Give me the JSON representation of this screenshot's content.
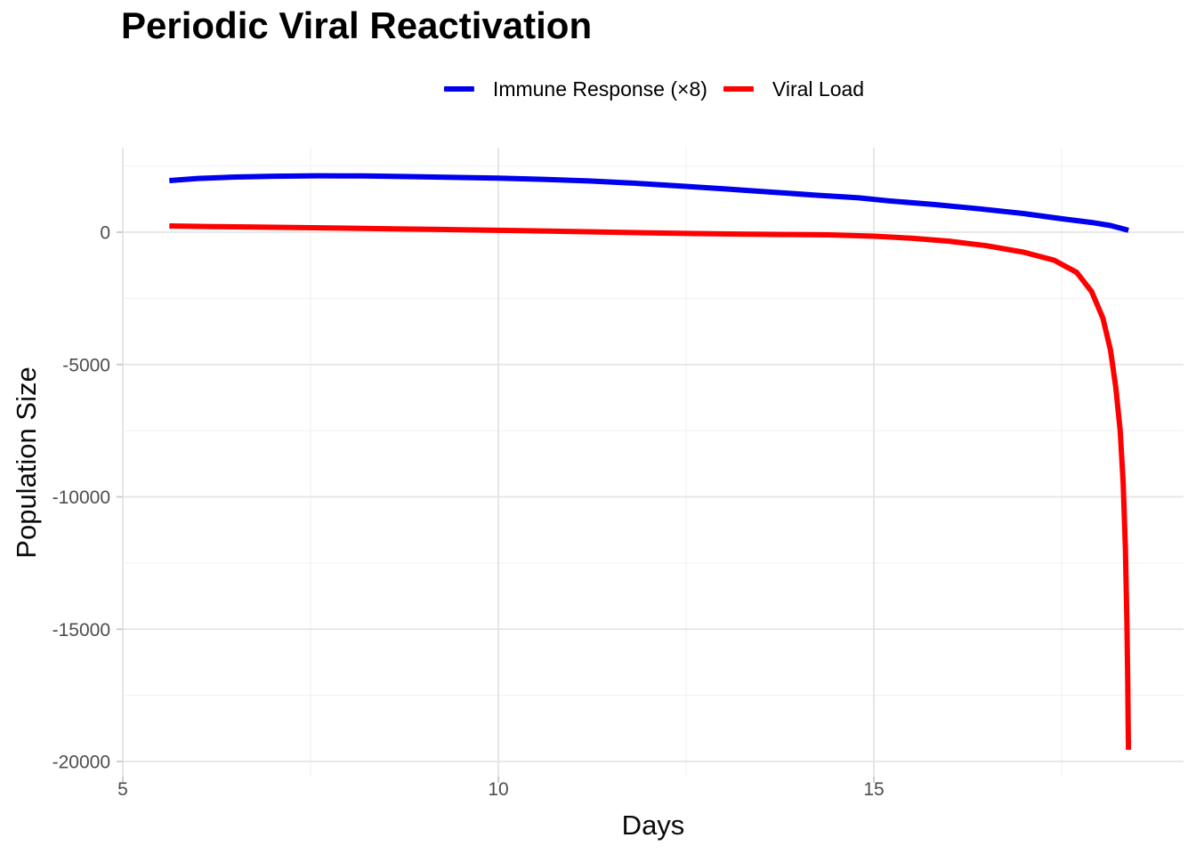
{
  "page": {
    "background": "#ffffff"
  },
  "chart_data": {
    "type": "line",
    "title": "Periodic Viral Reactivation",
    "xlabel": "Days",
    "ylabel": "Population Size",
    "legend_position": "top-center",
    "grid": "major+minor",
    "axes": {
      "x": {
        "range": [
          4.99,
          19.12
        ],
        "major_ticks": [
          5,
          10,
          15
        ],
        "tick_labels": [
          "5",
          "10",
          "15"
        ],
        "minor_ticks": [
          7.5,
          12.5,
          17.5
        ]
      },
      "y": {
        "range": [
          3190,
          -20570
        ],
        "major_ticks": [
          0,
          -5000,
          -10000,
          -15000,
          -20000
        ],
        "tick_labels": [
          "0",
          "-5000",
          "-10000",
          "-15000",
          "-20000"
        ],
        "minor_ticks": [
          2500,
          -2500,
          -7500,
          -12500,
          -17500
        ]
      }
    },
    "style": {
      "major_grid_color": "#E4E4E4",
      "minor_grid_color": "#F0F0F0",
      "tick_mark_color": "#C9C9C9",
      "axis_text_color": "#4D4D4D",
      "title_color": "#000000",
      "axis_title_color": "#0A0A0A",
      "line_width": 6
    },
    "series": [
      {
        "name": "Immune Response (×8)",
        "color": "#0000EE",
        "points": [
          [
            5.62,
            1950
          ],
          [
            6,
            2030
          ],
          [
            6.5,
            2085
          ],
          [
            7,
            2115
          ],
          [
            7.6,
            2130
          ],
          [
            8.2,
            2126
          ],
          [
            8.8,
            2102
          ],
          [
            9.4,
            2072
          ],
          [
            10,
            2040
          ],
          [
            10.6,
            1996
          ],
          [
            11.2,
            1936
          ],
          [
            11.8,
            1852
          ],
          [
            12.4,
            1748
          ],
          [
            13,
            1636
          ],
          [
            13.6,
            1522
          ],
          [
            14.2,
            1404
          ],
          [
            14.8,
            1296
          ],
          [
            15.2,
            1184
          ],
          [
            15.8,
            1044
          ],
          [
            16.4,
            884
          ],
          [
            17,
            704
          ],
          [
            17.5,
            508
          ],
          [
            17.9,
            368
          ],
          [
            18.15,
            252
          ],
          [
            18.39,
            72
          ]
        ]
      },
      {
        "name": "Viral Load",
        "color": "#FF0000",
        "points": [
          [
            5.62,
            235
          ],
          [
            6.2,
            212
          ],
          [
            6.8,
            192
          ],
          [
            7.4,
            172
          ],
          [
            8,
            150
          ],
          [
            8.6,
            128
          ],
          [
            9.2,
            105
          ],
          [
            9.8,
            80
          ],
          [
            10.4,
            55
          ],
          [
            11,
            25
          ],
          [
            11.5,
            0
          ],
          [
            12,
            -25
          ],
          [
            12.6,
            -50
          ],
          [
            13.2,
            -70
          ],
          [
            13.8,
            -86
          ],
          [
            14.4,
            -102
          ],
          [
            15,
            -150
          ],
          [
            15.5,
            -230
          ],
          [
            16,
            -340
          ],
          [
            16.5,
            -510
          ],
          [
            17,
            -760
          ],
          [
            17.4,
            -1060
          ],
          [
            17.7,
            -1520
          ],
          [
            17.9,
            -2250
          ],
          [
            18.05,
            -3250
          ],
          [
            18.15,
            -4450
          ],
          [
            18.22,
            -5850
          ],
          [
            18.28,
            -7500
          ],
          [
            18.32,
            -9500
          ],
          [
            18.35,
            -12000
          ],
          [
            18.37,
            -14800
          ],
          [
            18.38,
            -17000
          ],
          [
            18.385,
            -18400
          ],
          [
            18.39,
            -19560
          ]
        ]
      }
    ]
  }
}
